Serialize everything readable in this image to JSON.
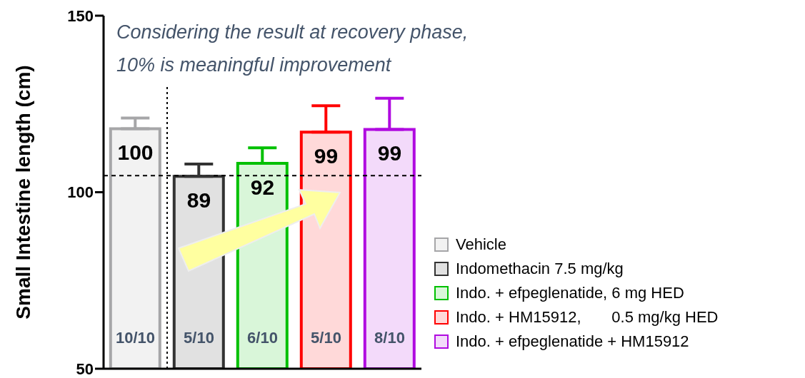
{
  "chart_data": {
    "type": "bar",
    "ylabel": "Small Intestine length (cm)",
    "categories": [
      null,
      null,
      null,
      null,
      null
    ],
    "series": [
      {
        "name": "Vehicle",
        "color": "#a6a6a8",
        "values": [
          118,
          null,
          null,
          null,
          null
        ],
        "errors": [
          [
            118,
            121
          ],
          null,
          null,
          null,
          null
        ]
      },
      {
        "name": "Indomethacin 7.5 mg/kg",
        "color": "#333333",
        "values": [
          null,
          104.5,
          null,
          null,
          null
        ],
        "errors": [
          null,
          [
            104.5,
            108
          ],
          null,
          null,
          null
        ]
      },
      {
        "name": "Indo. + efpeglenatide, 6 mg HED",
        "color": "#00c000",
        "values": [
          null,
          null,
          108.2,
          null,
          null
        ],
        "errors": [
          null,
          null,
          [
            108.2,
            112.6
          ],
          null,
          null
        ]
      },
      {
        "name": "Indo. + HM15912,       0.5 mg/kg HED",
        "color": "#ff0000",
        "values": [
          null,
          null,
          null,
          117,
          null
        ],
        "errors": [
          null,
          null,
          null,
          [
            117,
            124.5
          ],
          null
        ]
      },
      {
        "name": "Indo. + efpeglenatide + HM15912",
        "color": "#b00ae0",
        "values": [
          null,
          null,
          null,
          null,
          117.8
        ],
        "errors": [
          null,
          null,
          null,
          null,
          [
            117.8,
            126.6
          ]
        ]
      }
    ],
    "ylim": [
      50,
      150
    ],
    "yticks": [
      50,
      100,
      150
    ],
    "tick_labels": "y",
    "grid": false,
    "legend": "bottom right",
    "ref_lines": [
      {
        "axis": "y",
        "value": 104.7,
        "line_style": "dashed",
        "color": "#000000"
      }
    ],
    "annotations": [
      "Considering the result at recovery phase,",
      "10% is meaningful improvement",
      "100",
      "89",
      "92",
      "99",
      "99",
      "10/10",
      "5/10",
      "6/10",
      "5/10",
      "8/10"
    ]
  }
}
